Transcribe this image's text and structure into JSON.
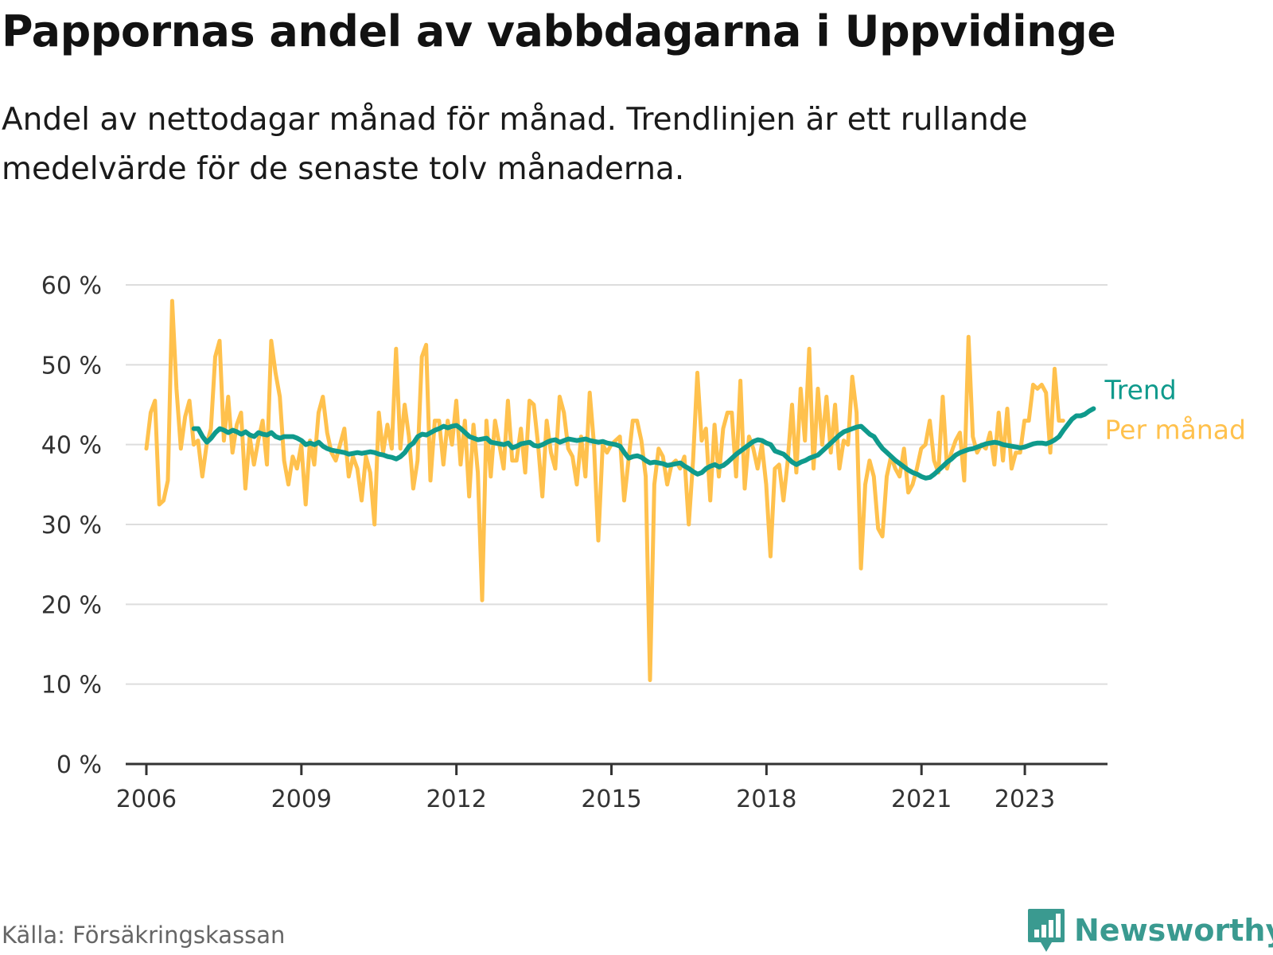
{
  "title": "Pappornas andel av vabbdagarna i Uppvidinge",
  "subtitle": "Andel av nettodagar månad för månad. Trendlinjen är ett rullande medelvärde för de senaste tolv månaderna.",
  "source": "Källa: Försäkringskassan",
  "brand": {
    "name": "Newsworthy",
    "icon": "bar-chart-speech-icon"
  },
  "colors": {
    "monthly": "#ffc14d",
    "trend": "#0f9a8c",
    "grid": "#dddddd",
    "axis": "#333333",
    "brand": "#3a9a90"
  },
  "chart_data": {
    "type": "line",
    "ylim": [
      0,
      60
    ],
    "yticks": [
      0,
      10,
      20,
      30,
      40,
      50,
      60
    ],
    "ytick_labels": [
      "0 %",
      "10 %",
      "20 %",
      "30 %",
      "40 %",
      "50 %",
      "60 %"
    ],
    "xlim": [
      2005.6,
      2024.6
    ],
    "xticks": [
      2006,
      2009,
      2012,
      2015,
      2018,
      2021,
      2023
    ],
    "xtick_labels": [
      "2006",
      "2009",
      "2012",
      "2015",
      "2018",
      "2021",
      "2023"
    ],
    "grid": true,
    "legend": "inline-right",
    "series": [
      {
        "name": "Per månad",
        "start": 2006.0,
        "step": 0.0833,
        "values": [
          39.5,
          44,
          45.5,
          32.5,
          33,
          35.5,
          58,
          47,
          39.5,
          43.5,
          45.5,
          40,
          40.5,
          36,
          40,
          42,
          51,
          53,
          40.5,
          46,
          39,
          42.5,
          44,
          34.5,
          41,
          37.5,
          40.5,
          43,
          37.5,
          53,
          49,
          46,
          38,
          35,
          38.5,
          37,
          40,
          32.5,
          40.5,
          37.5,
          44,
          46,
          41.5,
          39,
          38,
          40,
          42,
          36,
          38.5,
          37,
          33,
          38.5,
          36.5,
          30,
          44,
          39,
          42.5,
          39.5,
          52,
          39.5,
          45,
          41,
          34.5,
          38,
          51,
          52.5,
          35.5,
          43,
          43,
          37.5,
          43,
          40,
          45.5,
          37.5,
          43,
          33.5,
          42.5,
          36.5,
          20.5,
          43,
          36,
          43,
          40,
          37,
          45.5,
          38,
          38,
          42,
          36.5,
          45.5,
          45,
          40,
          33.5,
          43,
          39,
          37,
          46,
          44,
          39.5,
          38.5,
          35,
          41,
          36,
          46.5,
          40,
          28,
          40,
          39,
          40,
          40.5,
          41,
          33,
          38,
          43,
          43,
          40.5,
          36,
          10.5,
          35,
          39.5,
          38.5,
          35,
          37.5,
          38,
          37,
          38.5,
          30,
          38,
          49,
          40.5,
          42,
          33,
          42.5,
          36,
          42,
          44,
          44,
          36,
          48,
          34.5,
          41,
          39.5,
          37,
          40,
          35,
          26,
          37,
          37.5,
          33,
          38,
          45,
          36.5,
          47,
          40.5,
          52,
          37,
          47,
          40,
          46,
          39,
          45,
          37,
          40.5,
          40,
          48.5,
          44,
          24.5,
          35,
          38,
          36,
          29.5,
          28.5,
          36,
          38.5,
          37,
          36,
          39.5,
          34,
          35,
          37,
          39.5,
          40,
          43,
          38,
          36.5,
          46,
          37,
          39,
          40.5,
          41.5,
          35.5,
          53.5,
          41,
          39,
          40,
          39.5,
          41.5,
          37.5,
          44,
          38,
          44.5,
          37,
          39,
          39,
          43,
          43,
          47.5,
          47,
          47.5,
          46.5,
          39,
          49.5,
          43,
          43
        ]
      },
      {
        "name": "Trend",
        "start": 2006.92,
        "step": 0.0833,
        "values": [
          42,
          42,
          41,
          40.3,
          40.8,
          41.5,
          42,
          41.8,
          41.5,
          41.8,
          41.6,
          41.3,
          41.6,
          41.2,
          41,
          41.5,
          41.3,
          41.2,
          41.5,
          41,
          40.8,
          41,
          41,
          41,
          40.8,
          40.5,
          40,
          40.2,
          40,
          40.3,
          39.8,
          39.5,
          39.3,
          39.2,
          39.1,
          39,
          38.8,
          38.9,
          39,
          38.9,
          39,
          39.1,
          39,
          38.8,
          38.7,
          38.5,
          38.4,
          38.2,
          38.5,
          39,
          39.8,
          40.2,
          41,
          41.3,
          41.2,
          41.5,
          41.8,
          42,
          42.3,
          42.1,
          42.3,
          42.4,
          42,
          41.5,
          41,
          40.8,
          40.6,
          40.7,
          40.8,
          40.3,
          40.2,
          40.1,
          40,
          40.2,
          39.6,
          39.8,
          40.1,
          40.2,
          40.3,
          39.9,
          39.8,
          40,
          40.3,
          40.5,
          40.6,
          40.3,
          40.5,
          40.7,
          40.6,
          40.5,
          40.6,
          40.7,
          40.5,
          40.4,
          40.3,
          40.4,
          40.2,
          40.1,
          40,
          39.8,
          39,
          38.3,
          38.5,
          38.6,
          38.4,
          38,
          37.7,
          37.8,
          37.7,
          37.6,
          37.4,
          37.5,
          37.6,
          37.7,
          37.3,
          37,
          36.6,
          36.3,
          36.5,
          37,
          37.3,
          37.5,
          37.2,
          37.4,
          37.8,
          38.3,
          38.8,
          39.2,
          39.6,
          40,
          40.4,
          40.6,
          40.5,
          40.2,
          40,
          39.2,
          39,
          38.8,
          38.3,
          37.8,
          37.5,
          37.8,
          38,
          38.3,
          38.5,
          38.7,
          39.2,
          39.7,
          40.2,
          40.7,
          41.2,
          41.6,
          41.8,
          42,
          42.2,
          42.3,
          41.8,
          41.3,
          41,
          40.2,
          39.5,
          39,
          38.5,
          38,
          37.6,
          37.2,
          36.8,
          36.5,
          36.3,
          36,
          35.8,
          35.9,
          36.3,
          36.8,
          37.3,
          37.8,
          38.2,
          38.7,
          39,
          39.2,
          39.4,
          39.5,
          39.7,
          39.9,
          40.1,
          40.2,
          40.3,
          40.2,
          40,
          39.9,
          39.8,
          39.7,
          39.6,
          39.7,
          39.9,
          40.1,
          40.2,
          40.2,
          40.1,
          40.3,
          40.6,
          41,
          41.8,
          42.5,
          43.2,
          43.6,
          43.6,
          43.8,
          44.2,
          44.5
        ]
      }
    ]
  }
}
